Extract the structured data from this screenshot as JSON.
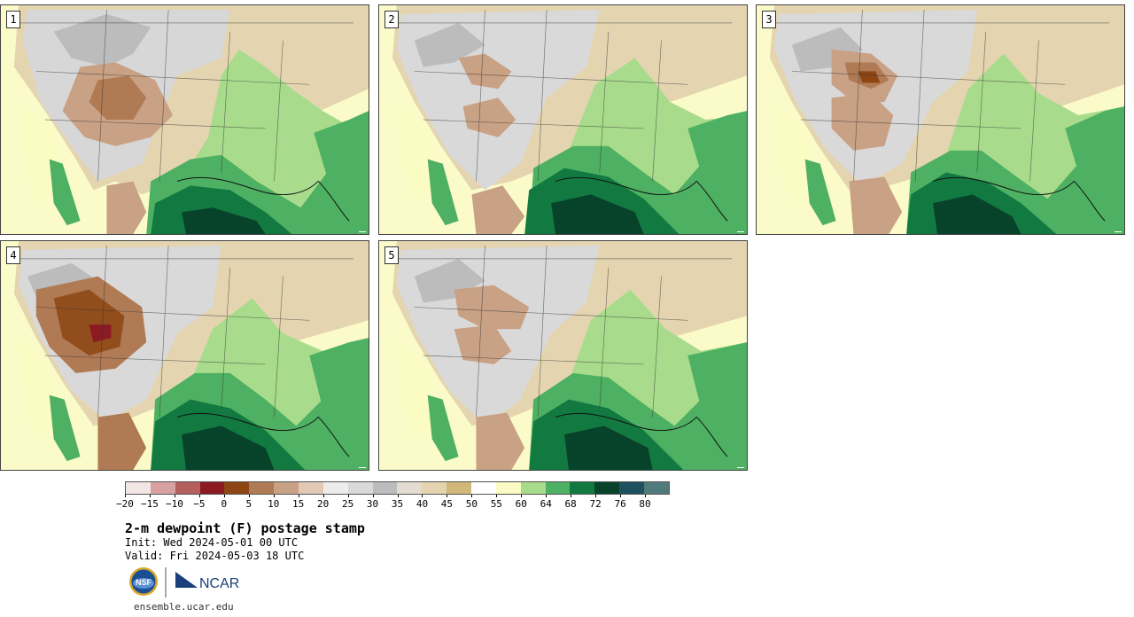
{
  "members": [
    "1",
    "2",
    "3",
    "4",
    "5"
  ],
  "colorbar": {
    "ticks": [
      "−20",
      "−15",
      "−10",
      "−5",
      "0",
      "5",
      "10",
      "15",
      "20",
      "25",
      "30",
      "35",
      "40",
      "45",
      "50",
      "55",
      "60",
      "64",
      "68",
      "72",
      "76",
      "80"
    ],
    "colors": [
      "#f3e7e6",
      "#d8a1a0",
      "#b45e5e",
      "#8b1a22",
      "#8c4513",
      "#b07a54",
      "#c9a184",
      "#e2c9b6",
      "#ececec",
      "#d9d9d9",
      "#bcbcbc",
      "#e2ddd0",
      "#e4d5b0",
      "#d2b77a",
      "#ffffff",
      "#fafcc4",
      "#a8dc8c",
      "#4eb062",
      "#127a40",
      "#07432b",
      "#1f5060",
      "#517a7b"
    ]
  },
  "title": "2-m dewpoint (F) postage stamp",
  "init_label": "Init: Wed 2024-05-01 00 UTC",
  "valid_label": "Valid: Fri 2024-05-03 18 UTC",
  "logos": {
    "nsf": "NSF",
    "ncar": "NCAR"
  },
  "website": "ensemble.ucar.edu"
}
